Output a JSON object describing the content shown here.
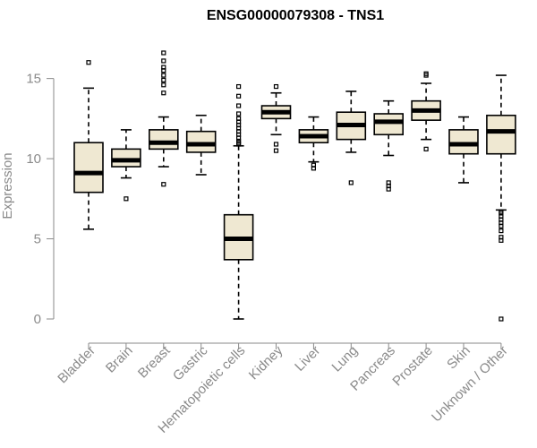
{
  "chart_data": {
    "type": "boxplot",
    "title": "ENSG00000079308 - TNS1",
    "xlabel": "",
    "ylabel": "Expression",
    "ylim": [
      0,
      16.6
    ],
    "yticks": [
      0,
      5,
      10,
      15
    ],
    "categories": [
      "Bladder",
      "Brain",
      "Breast",
      "Gastric",
      "Hematopoietic cells",
      "Kidney",
      "Liver",
      "Lung",
      "Pancreas",
      "Prostate",
      "Skin",
      "Unknown / Other"
    ],
    "boxes": [
      {
        "min": 5.6,
        "q1": 7.9,
        "median": 9.1,
        "q3": 11.0,
        "max": 14.4,
        "outliers": [
          16.0
        ]
      },
      {
        "min": 8.8,
        "q1": 9.5,
        "median": 9.9,
        "q3": 10.6,
        "max": 11.8,
        "outliers": [
          7.5
        ]
      },
      {
        "min": 9.5,
        "q1": 10.6,
        "median": 11.0,
        "q3": 11.8,
        "max": 12.6,
        "outliers": [
          8.4,
          14.1,
          14.6,
          14.9,
          15.2,
          15.5,
          15.7,
          16.1,
          16.6
        ]
      },
      {
        "min": 9.0,
        "q1": 10.4,
        "median": 10.9,
        "q3": 11.7,
        "max": 12.7,
        "outliers": []
      },
      {
        "min": 0.0,
        "q1": 3.7,
        "median": 5.0,
        "q3": 6.5,
        "max": 10.8,
        "outliers": [
          10.9,
          11.0,
          11.1,
          11.3,
          11.5,
          11.7,
          11.9,
          12.1,
          12.3,
          12.5,
          12.8,
          13.3,
          13.9,
          14.5
        ]
      },
      {
        "min": 11.5,
        "q1": 12.5,
        "median": 12.9,
        "q3": 13.3,
        "max": 14.1,
        "outliers": [
          10.5,
          10.9,
          14.5
        ]
      },
      {
        "min": 9.8,
        "q1": 11.0,
        "median": 11.4,
        "q3": 11.8,
        "max": 12.6,
        "outliers": [
          9.4,
          9.6
        ]
      },
      {
        "min": 10.4,
        "q1": 11.2,
        "median": 12.1,
        "q3": 12.9,
        "max": 14.2,
        "outliers": [
          8.5
        ]
      },
      {
        "min": 10.2,
        "q1": 11.5,
        "median": 12.3,
        "q3": 12.8,
        "max": 13.6,
        "outliers": [
          8.1,
          8.3,
          8.5
        ]
      },
      {
        "min": 11.2,
        "q1": 12.4,
        "median": 13.0,
        "q3": 13.6,
        "max": 14.7,
        "outliers": [
          10.6,
          15.2,
          15.3
        ]
      },
      {
        "min": 8.5,
        "q1": 10.3,
        "median": 10.9,
        "q3": 11.8,
        "max": 12.6,
        "outliers": []
      },
      {
        "min": 6.8,
        "q1": 10.3,
        "median": 11.7,
        "q3": 12.7,
        "max": 15.2,
        "outliers": [
          0.0,
          4.9,
          5.1,
          5.5,
          5.8,
          6.0,
          6.2,
          6.4,
          6.6,
          6.7
        ]
      }
    ]
  },
  "colors": {
    "box_fill": "#efe8d2",
    "axis_text": "#8a8a8a"
  }
}
